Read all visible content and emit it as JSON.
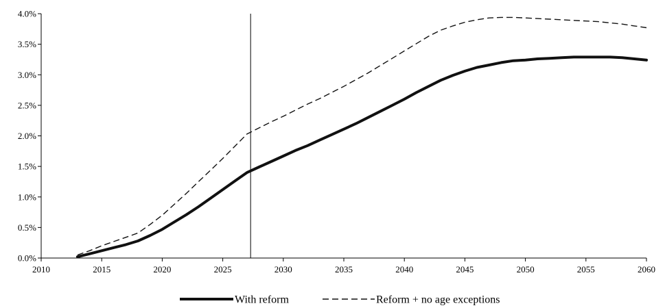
{
  "chart_data": {
    "type": "line",
    "title": "",
    "xlabel": "",
    "ylabel": "",
    "xlim": [
      2010,
      2060
    ],
    "ylim": [
      0,
      4.0
    ],
    "x_ticks": [
      2010,
      2015,
      2020,
      2025,
      2030,
      2035,
      2040,
      2045,
      2050,
      2055,
      2060
    ],
    "x_tick_labels": [
      "2010",
      "2015",
      "2020",
      "2025",
      "2030",
      "2035",
      "2040",
      "2045",
      "2050",
      "2055",
      "2060"
    ],
    "y_ticks": [
      0,
      0.5,
      1.0,
      1.5,
      2.0,
      2.5,
      3.0,
      3.5,
      4.0
    ],
    "y_tick_labels": [
      "0.0%",
      "0.5%",
      "1.0%",
      "1.5%",
      "2.0%",
      "2.5%",
      "3.0%",
      "3.5%",
      "4.0%"
    ],
    "grid": false,
    "legend_position": "bottom",
    "reference_line_x": 2027.3,
    "series": [
      {
        "name": "With reform",
        "style": "solid",
        "color": "#111111",
        "x": [
          2013,
          2014,
          2015,
          2016,
          2017,
          2018,
          2019,
          2020,
          2021,
          2022,
          2023,
          2024,
          2025,
          2026,
          2027,
          2028,
          2029,
          2030,
          2031,
          2032,
          2033,
          2034,
          2035,
          2036,
          2037,
          2038,
          2039,
          2040,
          2041,
          2042,
          2043,
          2044,
          2045,
          2046,
          2047,
          2048,
          2049,
          2050,
          2051,
          2052,
          2053,
          2054,
          2055,
          2056,
          2057,
          2058,
          2059,
          2060
        ],
        "values": [
          0.02,
          0.07,
          0.12,
          0.17,
          0.22,
          0.28,
          0.37,
          0.47,
          0.59,
          0.71,
          0.84,
          0.98,
          1.12,
          1.26,
          1.4,
          1.49,
          1.58,
          1.67,
          1.76,
          1.84,
          1.93,
          2.02,
          2.11,
          2.2,
          2.3,
          2.4,
          2.5,
          2.6,
          2.71,
          2.81,
          2.91,
          2.99,
          3.06,
          3.12,
          3.16,
          3.2,
          3.23,
          3.24,
          3.26,
          3.27,
          3.28,
          3.29,
          3.29,
          3.29,
          3.29,
          3.28,
          3.26,
          3.24
        ]
      },
      {
        "name": "Reform + no age exceptions",
        "style": "dashed",
        "color": "#111111",
        "x": [
          2013,
          2014,
          2015,
          2016,
          2017,
          2018,
          2019,
          2020,
          2021,
          2022,
          2023,
          2024,
          2025,
          2026,
          2027,
          2028,
          2029,
          2030,
          2031,
          2032,
          2033,
          2034,
          2035,
          2036,
          2037,
          2038,
          2039,
          2040,
          2041,
          2042,
          2043,
          2044,
          2045,
          2046,
          2047,
          2048,
          2049,
          2050,
          2051,
          2052,
          2053,
          2054,
          2055,
          2056,
          2057,
          2058,
          2059,
          2060
        ],
        "values": [
          0.05,
          0.12,
          0.2,
          0.27,
          0.34,
          0.41,
          0.55,
          0.7,
          0.88,
          1.06,
          1.25,
          1.44,
          1.63,
          1.83,
          2.03,
          2.13,
          2.23,
          2.32,
          2.42,
          2.52,
          2.61,
          2.71,
          2.81,
          2.92,
          3.03,
          3.15,
          3.27,
          3.39,
          3.51,
          3.63,
          3.73,
          3.8,
          3.86,
          3.9,
          3.93,
          3.94,
          3.94,
          3.93,
          3.92,
          3.91,
          3.9,
          3.89,
          3.88,
          3.87,
          3.85,
          3.83,
          3.8,
          3.77
        ]
      }
    ]
  }
}
